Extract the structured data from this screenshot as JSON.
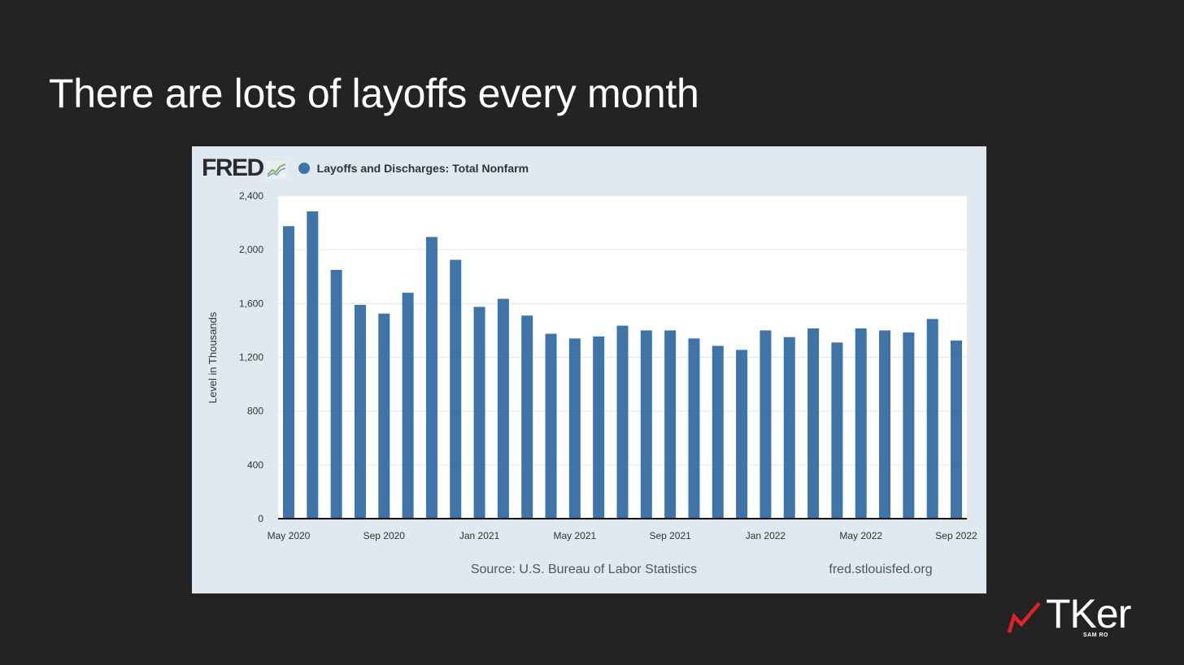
{
  "slide": {
    "title": "There are lots of layoffs every month"
  },
  "chart_header": {
    "logo_text": "FRED",
    "logo_icon": "fred-graph-icon"
  },
  "chart_footer": {
    "source": "Source: U.S. Bureau of Labor Statistics",
    "site": "fred.stlouisfed.org"
  },
  "brand": {
    "name": "TKer",
    "sub": "SAM RO",
    "icon": "trend-line-icon",
    "accent_color": "#e0202a"
  },
  "chart_data": {
    "type": "bar",
    "title": "",
    "xlabel": "",
    "ylabel": "Level in Thousands",
    "ylim": [
      0,
      2400
    ],
    "yticks": [
      0,
      400,
      800,
      1200,
      1600,
      2000,
      2400
    ],
    "grid": true,
    "legend_placement": "top",
    "bar_color": "#3f74a9",
    "categories": [
      "2020-05",
      "2020-06",
      "2020-07",
      "2020-08",
      "2020-09",
      "2020-10",
      "2020-11",
      "2020-12",
      "2021-01",
      "2021-02",
      "2021-03",
      "2021-04",
      "2021-05",
      "2021-06",
      "2021-07",
      "2021-08",
      "2021-09",
      "2021-10",
      "2021-11",
      "2021-12",
      "2022-01",
      "2022-02",
      "2022-03",
      "2022-04",
      "2022-05",
      "2022-06",
      "2022-07",
      "2022-08",
      "2022-09"
    ],
    "tick_labels": [
      {
        "index": 0,
        "label": "May 2020"
      },
      {
        "index": 4,
        "label": "Sep 2020"
      },
      {
        "index": 8,
        "label": "Jan 2021"
      },
      {
        "index": 12,
        "label": "May 2021"
      },
      {
        "index": 16,
        "label": "Sep 2021"
      },
      {
        "index": 20,
        "label": "Jan 2022"
      },
      {
        "index": 24,
        "label": "May 2022"
      },
      {
        "index": 28,
        "label": "Sep 2022"
      }
    ],
    "series": [
      {
        "name": "Layoffs and Discharges: Total Nonfarm",
        "values": [
          2175,
          2285,
          1850,
          1590,
          1525,
          1680,
          2095,
          1925,
          1575,
          1635,
          1510,
          1375,
          1340,
          1355,
          1435,
          1400,
          1400,
          1340,
          1285,
          1255,
          1400,
          1350,
          1415,
          1310,
          1415,
          1400,
          1385,
          1485,
          1325
        ]
      }
    ]
  }
}
